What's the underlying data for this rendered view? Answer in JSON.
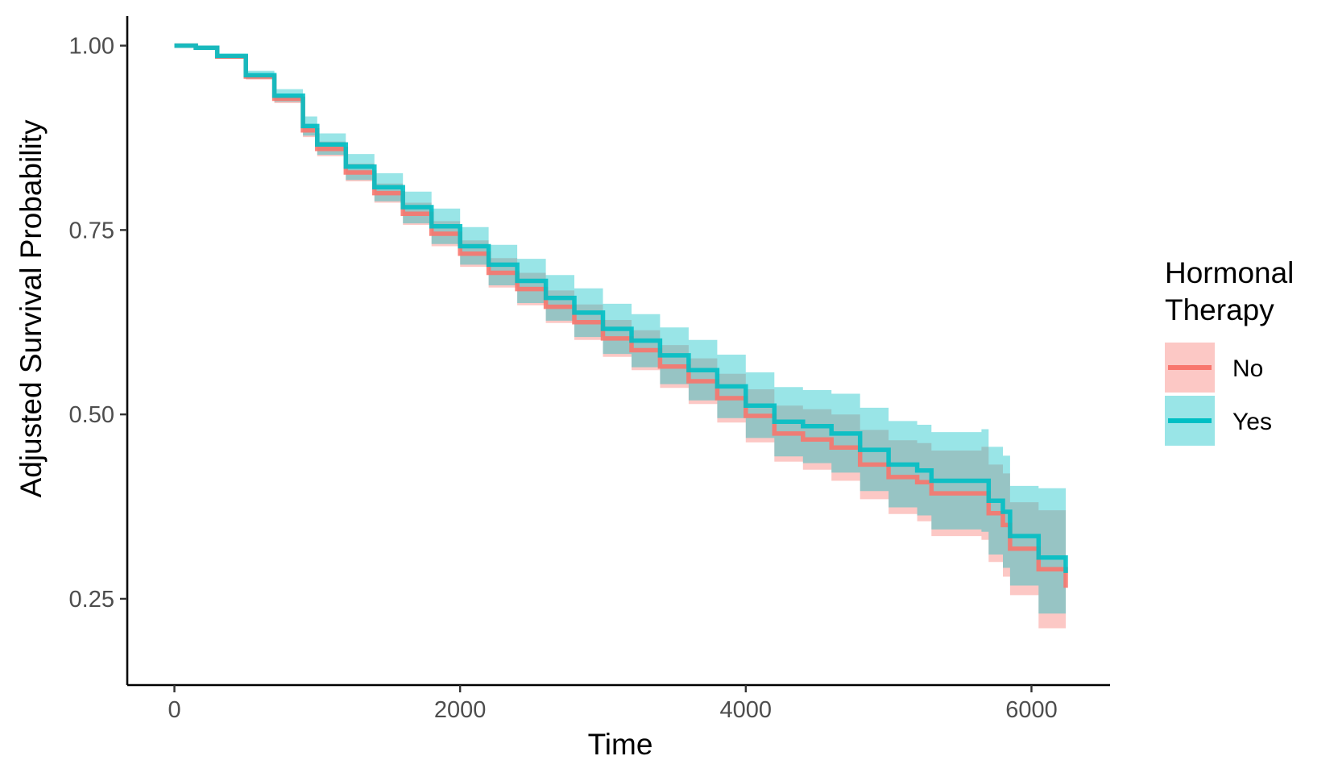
{
  "chart_data": {
    "type": "line",
    "title": "",
    "xlabel": "Time",
    "ylabel": "Adjusted Survival Probability",
    "xlim": [
      -330,
      6550
    ],
    "ylim": [
      0.133,
      1.04
    ],
    "x_ticks": [
      0,
      2000,
      4000,
      6000
    ],
    "x_tick_labels": [
      "0",
      "2000",
      "4000",
      "6000"
    ],
    "y_ticks": [
      0.25,
      0.5,
      0.75,
      1.0
    ],
    "y_tick_labels": [
      "0.25",
      "0.50",
      "0.75",
      "1.00"
    ],
    "grid": false,
    "legend": {
      "title": "Hormonal Therapy",
      "title_lines": [
        "Hormonal",
        "Therapy"
      ],
      "placement": "right"
    },
    "series": [
      {
        "name": "No",
        "color": "#f8766d",
        "fill": "#f8766d",
        "x": [
          0,
          150,
          300,
          500,
          700,
          900,
          1000,
          1200,
          1400,
          1600,
          1800,
          2000,
          2200,
          2400,
          2600,
          2800,
          3000,
          3200,
          3400,
          3600,
          3800,
          4000,
          4200,
          4400,
          4600,
          4800,
          5000,
          5200,
          5300,
          5650,
          5700,
          5800,
          5850,
          6050,
          6150,
          6240
        ],
        "y": [
          1.0,
          0.997,
          0.985,
          0.958,
          0.928,
          0.885,
          0.86,
          0.828,
          0.8,
          0.772,
          0.745,
          0.718,
          0.692,
          0.67,
          0.646,
          0.625,
          0.603,
          0.587,
          0.565,
          0.545,
          0.522,
          0.498,
          0.474,
          0.466,
          0.455,
          0.432,
          0.415,
          0.408,
          0.393,
          0.393,
          0.366,
          0.35,
          0.318,
          0.29,
          0.29,
          0.265
        ],
        "lower": [
          1.0,
          0.996,
          0.983,
          0.954,
          0.922,
          0.876,
          0.85,
          0.816,
          0.787,
          0.757,
          0.728,
          0.7,
          0.672,
          0.648,
          0.624,
          0.601,
          0.578,
          0.56,
          0.536,
          0.514,
          0.489,
          0.462,
          0.436,
          0.425,
          0.41,
          0.385,
          0.365,
          0.355,
          0.335,
          0.33,
          0.3,
          0.28,
          0.255,
          0.21,
          0.21,
          0.175
        ],
        "upper": [
          1.0,
          0.998,
          0.987,
          0.962,
          0.934,
          0.894,
          0.87,
          0.84,
          0.813,
          0.787,
          0.762,
          0.736,
          0.712,
          0.692,
          0.668,
          0.649,
          0.628,
          0.614,
          0.594,
          0.576,
          0.555,
          0.534,
          0.512,
          0.507,
          0.5,
          0.479,
          0.465,
          0.461,
          0.451,
          0.456,
          0.432,
          0.42,
          0.381,
          0.37,
          0.37,
          0.355
        ]
      },
      {
        "name": "Yes",
        "color": "#00bfc4",
        "fill": "#00bfc4",
        "x": [
          0,
          150,
          300,
          500,
          700,
          900,
          1000,
          1200,
          1400,
          1600,
          1800,
          2000,
          2200,
          2400,
          2600,
          2800,
          3000,
          3200,
          3400,
          3600,
          3800,
          4000,
          4200,
          4400,
          4600,
          4800,
          5000,
          5200,
          5300,
          5650,
          5700,
          5800,
          5850,
          6050,
          6150,
          6240
        ],
        "y": [
          1.0,
          0.997,
          0.986,
          0.96,
          0.932,
          0.891,
          0.866,
          0.836,
          0.808,
          0.781,
          0.755,
          0.728,
          0.703,
          0.681,
          0.658,
          0.638,
          0.616,
          0.6,
          0.58,
          0.56,
          0.538,
          0.512,
          0.49,
          0.484,
          0.474,
          0.452,
          0.432,
          0.424,
          0.41,
          0.41,
          0.383,
          0.368,
          0.335,
          0.306,
          0.306,
          0.285
        ],
        "lower": [
          1.0,
          0.996,
          0.983,
          0.955,
          0.924,
          0.878,
          0.852,
          0.818,
          0.789,
          0.759,
          0.731,
          0.703,
          0.675,
          0.651,
          0.627,
          0.605,
          0.582,
          0.564,
          0.541,
          0.519,
          0.495,
          0.468,
          0.443,
          0.434,
          0.421,
          0.396,
          0.374,
          0.363,
          0.344,
          0.341,
          0.31,
          0.292,
          0.268,
          0.23,
          0.23,
          0.185
        ],
        "upper": [
          1.0,
          0.999,
          0.989,
          0.966,
          0.941,
          0.904,
          0.881,
          0.853,
          0.827,
          0.802,
          0.779,
          0.754,
          0.73,
          0.711,
          0.689,
          0.671,
          0.65,
          0.636,
          0.618,
          0.601,
          0.581,
          0.557,
          0.537,
          0.533,
          0.528,
          0.509,
          0.491,
          0.486,
          0.476,
          0.48,
          0.456,
          0.444,
          0.403,
          0.4,
          0.4,
          0.385
        ]
      }
    ]
  }
}
